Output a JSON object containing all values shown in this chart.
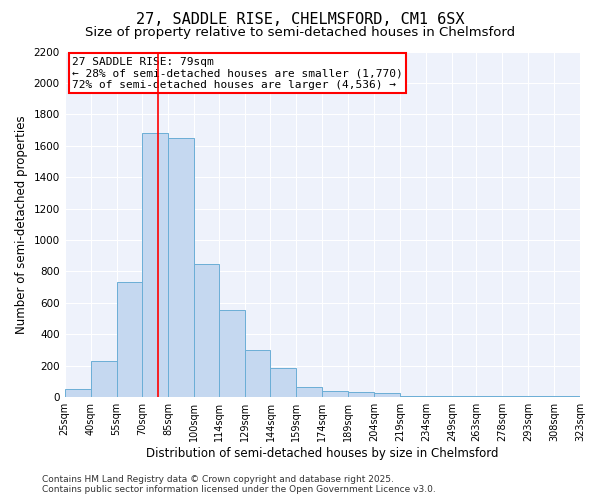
{
  "title": "27, SADDLE RISE, CHELMSFORD, CM1 6SX",
  "subtitle": "Size of property relative to semi-detached houses in Chelmsford",
  "xlabel": "Distribution of semi-detached houses by size in Chelmsford",
  "ylabel": "Number of semi-detached properties",
  "footer_line1": "Contains HM Land Registry data © Crown copyright and database right 2025.",
  "footer_line2": "Contains public sector information licensed under the Open Government Licence v3.0.",
  "annotation_line1": "27 SADDLE RISE: 79sqm",
  "annotation_line2": "← 28% of semi-detached houses are smaller (1,770)",
  "annotation_line3": "72% of semi-detached houses are larger (4,536) →",
  "bin_edges": [
    25,
    40,
    55,
    70,
    85,
    100,
    114,
    129,
    144,
    159,
    174,
    189,
    204,
    219,
    234,
    249,
    263,
    278,
    293,
    308,
    323
  ],
  "bar_heights": [
    50,
    230,
    730,
    1680,
    1650,
    845,
    555,
    300,
    185,
    65,
    40,
    35,
    25,
    10,
    5,
    5,
    5,
    5,
    5,
    5
  ],
  "bar_color": "#c5d8f0",
  "bar_edge_color": "#6baed6",
  "red_line_x": 79,
  "ylim": [
    0,
    2200
  ],
  "yticks": [
    0,
    200,
    400,
    600,
    800,
    1000,
    1200,
    1400,
    1600,
    1800,
    2000,
    2200
  ],
  "xtick_labels": [
    "25sqm",
    "40sqm",
    "55sqm",
    "70sqm",
    "85sqm",
    "100sqm",
    "114sqm",
    "129sqm",
    "144sqm",
    "159sqm",
    "174sqm",
    "189sqm",
    "204sqm",
    "219sqm",
    "234sqm",
    "249sqm",
    "263sqm",
    "278sqm",
    "293sqm",
    "308sqm",
    "323sqm"
  ],
  "background_color": "#eef2fb",
  "grid_color": "#ffffff",
  "title_fontsize": 11,
  "subtitle_fontsize": 9.5,
  "axis_label_fontsize": 8.5,
  "tick_fontsize": 7.5,
  "annotation_fontsize": 8,
  "footer_fontsize": 6.5
}
